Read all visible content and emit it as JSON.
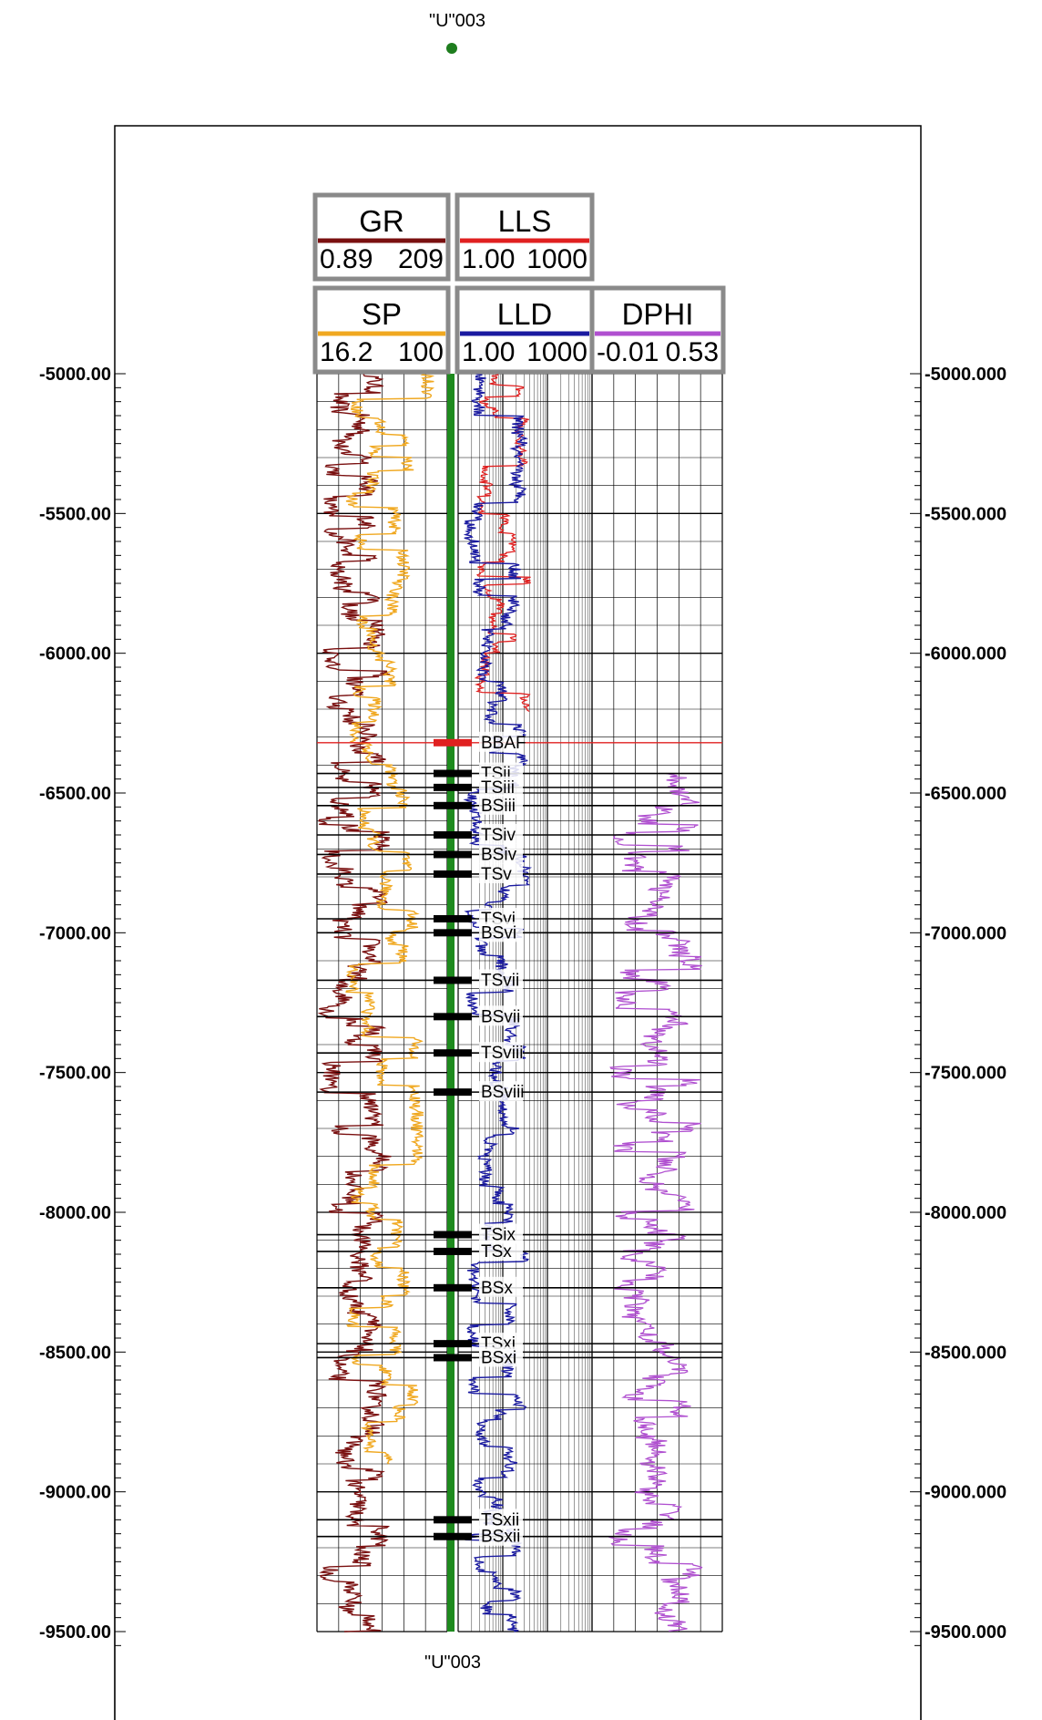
{
  "well": {
    "name_top": "\"U\"003",
    "name_bottom": "\"U\"003",
    "marker_color": "#1e7d1e"
  },
  "chart_data": {
    "type": "well-log",
    "depth_range": [
      -5000,
      -9500
    ],
    "left_depth_labels": [
      "-5000.00",
      "-5500.00",
      "-6000.00",
      "-6500.00",
      "-7000.00",
      "-7500.00",
      "-8000.00",
      "-8500.00",
      "-9000.00",
      "-9500.00"
    ],
    "right_depth_labels": [
      "-5000.000",
      "-5500.000",
      "-6000.000",
      "-6500.000",
      "-7000.000",
      "-7500.000",
      "-8000.000",
      "-8500.000",
      "-9000.000",
      "-9500.000"
    ],
    "depth_ticks": [
      -5000,
      -5500,
      -6000,
      -6500,
      -7000,
      -7500,
      -8000,
      -8500,
      -9000,
      -9500
    ],
    "curves": [
      {
        "name": "GR",
        "min": "0.89",
        "max": "209",
        "color": "#7a1010",
        "scale": "linear",
        "track": 1
      },
      {
        "name": "SP",
        "min": "16.2",
        "max": "100",
        "color": "#f0a820",
        "scale": "linear",
        "track": 1
      },
      {
        "name": "LLS",
        "min": "1.00",
        "max": "1000",
        "color": "#e02020",
        "scale": "log",
        "track": 2
      },
      {
        "name": "LLD",
        "min": "1.00",
        "max": "1000",
        "color": "#1a1aa0",
        "scale": "log",
        "track": 2
      },
      {
        "name": "DPHI",
        "min": "-0.01",
        "max": "0.53",
        "color": "#b050d0",
        "scale": "linear",
        "track": 3
      }
    ],
    "formation_tops": [
      {
        "name": "BBAF",
        "depth": -6320,
        "color": "#e02020"
      },
      {
        "name": "TSii",
        "depth": -6430,
        "color": "#000000"
      },
      {
        "name": "TSiii",
        "depth": -6480,
        "color": "#000000"
      },
      {
        "name": "BSiii",
        "depth": -6545,
        "color": "#000000"
      },
      {
        "name": "TSiv",
        "depth": -6650,
        "color": "#000000"
      },
      {
        "name": "BSiv",
        "depth": -6720,
        "color": "#000000"
      },
      {
        "name": "TSv",
        "depth": -6790,
        "color": "#000000"
      },
      {
        "name": "TSvi",
        "depth": -6950,
        "color": "#000000"
      },
      {
        "name": "BSvi",
        "depth": -7000,
        "color": "#000000"
      },
      {
        "name": "TSvii",
        "depth": -7170,
        "color": "#000000"
      },
      {
        "name": "BSvii",
        "depth": -7300,
        "color": "#000000"
      },
      {
        "name": "TSviii",
        "depth": -7430,
        "color": "#000000"
      },
      {
        "name": "BSviii",
        "depth": -7570,
        "color": "#000000"
      },
      {
        "name": "TSix",
        "depth": -8080,
        "color": "#000000"
      },
      {
        "name": "TSx",
        "depth": -8140,
        "color": "#000000"
      },
      {
        "name": "BSx",
        "depth": -8270,
        "color": "#000000"
      },
      {
        "name": "TSxi",
        "depth": -8470,
        "color": "#000000"
      },
      {
        "name": "BSxi",
        "depth": -8520,
        "color": "#000000"
      },
      {
        "name": "TSxii",
        "depth": -9100,
        "color": "#000000"
      },
      {
        "name": "BSxii",
        "depth": -9160,
        "color": "#000000"
      }
    ],
    "dphi_depth_range": [
      -6430,
      -9500
    ],
    "lld_depth_range": [
      -5000,
      -9500
    ],
    "lls_depth_range": [
      -5000,
      -6210
    ]
  }
}
